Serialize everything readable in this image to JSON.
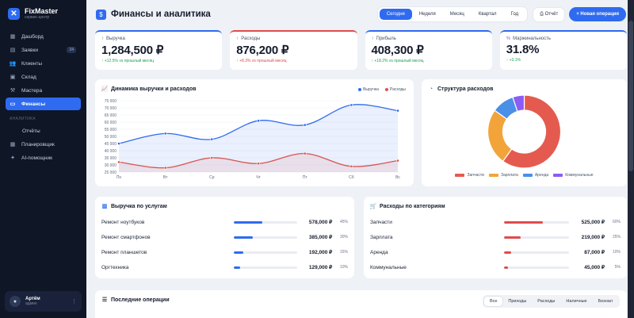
{
  "brand": {
    "name": "FixMaster",
    "subtitle": "сервис-центр",
    "logo_icon": "wrench-icon"
  },
  "sidebar": {
    "items": [
      {
        "label": "Дашборд",
        "icon": "dashboard-icon"
      },
      {
        "label": "Заявки",
        "icon": "inbox-icon",
        "badge": "24"
      },
      {
        "label": "Клиенты",
        "icon": "users-icon"
      },
      {
        "label": "Склад",
        "icon": "box-icon"
      },
      {
        "label": "Мастера",
        "icon": "tools-icon"
      },
      {
        "label": "Финансы",
        "icon": "wallet-icon",
        "active": true
      }
    ],
    "section_label": "АНАЛИТИКА",
    "section_items": [
      {
        "label": "Отчёты"
      },
      {
        "label": "Планировщик",
        "icon": "calendar-icon"
      },
      {
        "label": "AI-помощник",
        "icon": "sparkle-icon"
      }
    ]
  },
  "user": {
    "name": "Артём",
    "role": "админ"
  },
  "header": {
    "title": "Финансы и аналитика",
    "periods": [
      "Сегодня",
      "Неделя",
      "Месяц",
      "Квартал",
      "Год"
    ],
    "active_period": 0,
    "report_label": "Отчёт",
    "new_op_label": "+ Новая операция"
  },
  "kpis": [
    {
      "label": "Выручка",
      "value": "1,284,500 ₽",
      "change": "↑ +12.5% vs прошлый месяц",
      "trend": "up",
      "accent": "#2f6bf0"
    },
    {
      "label": "Расходы",
      "value": "876,200 ₽",
      "change": "↑ +8.3% vs прошлый месяц",
      "trend": "down",
      "accent": "#e04b4b"
    },
    {
      "label": "Прибыль",
      "value": "408,300 ₽",
      "change": "↑ +18.2% vs прошлый месяц",
      "trend": "up",
      "accent": "#2f6bf0"
    },
    {
      "label": "Маржинальность",
      "value": "31.8%",
      "change": "↑ +3.1%",
      "trend": "up",
      "accent": "#2f6bf0"
    }
  ],
  "line_chart": {
    "title": "Динамика выручки и расходов",
    "chart_data": {
      "type": "line",
      "categories": [
        "Пн",
        "Вт",
        "Ср",
        "Чт",
        "Пт",
        "Сб",
        "Вс"
      ],
      "series": [
        {
          "name": "Выручка",
          "values": [
            45000,
            52000,
            48000,
            61000,
            58000,
            72000,
            68000
          ],
          "color": "#2f6bf0"
        },
        {
          "name": "Расходы",
          "values": [
            32000,
            28000,
            35000,
            31000,
            38000,
            29000,
            33000
          ],
          "color": "#d9534f"
        }
      ],
      "yticks": [
        "75 000",
        "70 000",
        "65 000",
        "60 000",
        "55 000",
        "50 000",
        "45 000",
        "40 000",
        "35 000",
        "30 000",
        "25 000"
      ],
      "ylim": [
        25000,
        75000
      ],
      "legend": "top-right"
    }
  },
  "pie_chart": {
    "title": "Структура расходов",
    "chart_data": {
      "type": "pie",
      "labels": [
        "Запчасти",
        "Зарплата",
        "Аренда",
        "Коммунальные"
      ],
      "values": [
        525000,
        219000,
        87000,
        45000
      ],
      "colors": [
        "#e55a4f",
        "#f2a43a",
        "#4a90e8",
        "#8b5cf6"
      ],
      "legend": "bottom"
    }
  },
  "services": {
    "title": "Выручка по услугам",
    "rows": [
      {
        "name": "Ремонт ноутбуков",
        "value": "578,000 ₽",
        "pct": "45%",
        "fraction": 0.45
      },
      {
        "name": "Ремонт смартфонов",
        "value": "385,000 ₽",
        "pct": "30%",
        "fraction": 0.3
      },
      {
        "name": "Ремонт планшетов",
        "value": "192,000 ₽",
        "pct": "15%",
        "fraction": 0.15
      },
      {
        "name": "Оргтехника",
        "value": "129,000 ₽",
        "pct": "10%",
        "fraction": 0.1
      }
    ],
    "color": "#2f6bf0"
  },
  "expenses": {
    "title": "Расходы по категориям",
    "rows": [
      {
        "name": "Запчасти",
        "value": "525,000 ₽",
        "pct": "60%",
        "fraction": 0.6
      },
      {
        "name": "Зарплата",
        "value": "219,000 ₽",
        "pct": "25%",
        "fraction": 0.25
      },
      {
        "name": "Аренда",
        "value": "87,000 ₽",
        "pct": "10%",
        "fraction": 0.1
      },
      {
        "name": "Коммунальные",
        "value": "45,000 ₽",
        "pct": "5%",
        "fraction": 0.05
      }
    ],
    "color": "#e04b4b"
  },
  "operations": {
    "title": "Последние операции",
    "filters": [
      "Все",
      "Приходы",
      "Расходы",
      "Наличные",
      "Безнал"
    ],
    "active_filter": 0
  }
}
